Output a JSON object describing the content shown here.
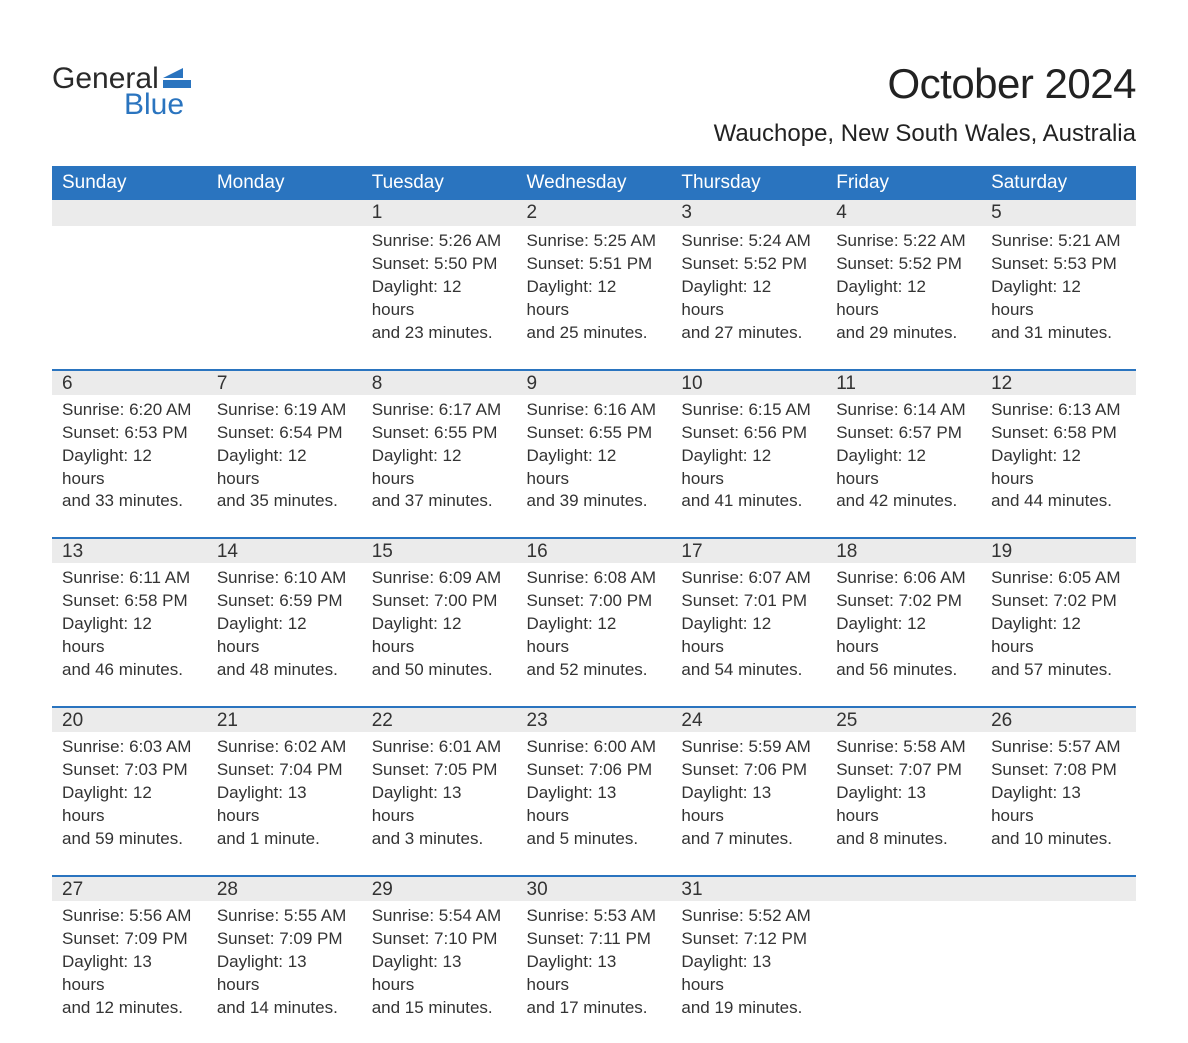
{
  "logo": {
    "word1": "General",
    "word2": "Blue",
    "accent_color": "#2a74bf"
  },
  "title": "October 2024",
  "location": "Wauchope, New South Wales, Australia",
  "colors": {
    "header_bg": "#2a74bf",
    "header_text": "#ffffff",
    "daynum_bg": "#ebebeb",
    "row_border": "#2a74bf",
    "body_text": "#333333",
    "page_bg": "#ffffff"
  },
  "fonts": {
    "title_pt": 42,
    "location_pt": 24,
    "dow_pt": 19,
    "daynum_pt": 19,
    "body_pt": 17
  },
  "days_of_week": [
    "Sunday",
    "Monday",
    "Tuesday",
    "Wednesday",
    "Thursday",
    "Friday",
    "Saturday"
  ],
  "weeks": [
    [
      null,
      null,
      {
        "n": "1",
        "sunrise": "Sunrise: 5:26 AM",
        "sunset": "Sunset: 5:50 PM",
        "day1": "Daylight: 12 hours",
        "day2": "and 23 minutes."
      },
      {
        "n": "2",
        "sunrise": "Sunrise: 5:25 AM",
        "sunset": "Sunset: 5:51 PM",
        "day1": "Daylight: 12 hours",
        "day2": "and 25 minutes."
      },
      {
        "n": "3",
        "sunrise": "Sunrise: 5:24 AM",
        "sunset": "Sunset: 5:52 PM",
        "day1": "Daylight: 12 hours",
        "day2": "and 27 minutes."
      },
      {
        "n": "4",
        "sunrise": "Sunrise: 5:22 AM",
        "sunset": "Sunset: 5:52 PM",
        "day1": "Daylight: 12 hours",
        "day2": "and 29 minutes."
      },
      {
        "n": "5",
        "sunrise": "Sunrise: 5:21 AM",
        "sunset": "Sunset: 5:53 PM",
        "day1": "Daylight: 12 hours",
        "day2": "and 31 minutes."
      }
    ],
    [
      {
        "n": "6",
        "sunrise": "Sunrise: 6:20 AM",
        "sunset": "Sunset: 6:53 PM",
        "day1": "Daylight: 12 hours",
        "day2": "and 33 minutes."
      },
      {
        "n": "7",
        "sunrise": "Sunrise: 6:19 AM",
        "sunset": "Sunset: 6:54 PM",
        "day1": "Daylight: 12 hours",
        "day2": "and 35 minutes."
      },
      {
        "n": "8",
        "sunrise": "Sunrise: 6:17 AM",
        "sunset": "Sunset: 6:55 PM",
        "day1": "Daylight: 12 hours",
        "day2": "and 37 minutes."
      },
      {
        "n": "9",
        "sunrise": "Sunrise: 6:16 AM",
        "sunset": "Sunset: 6:55 PM",
        "day1": "Daylight: 12 hours",
        "day2": "and 39 minutes."
      },
      {
        "n": "10",
        "sunrise": "Sunrise: 6:15 AM",
        "sunset": "Sunset: 6:56 PM",
        "day1": "Daylight: 12 hours",
        "day2": "and 41 minutes."
      },
      {
        "n": "11",
        "sunrise": "Sunrise: 6:14 AM",
        "sunset": "Sunset: 6:57 PM",
        "day1": "Daylight: 12 hours",
        "day2": "and 42 minutes."
      },
      {
        "n": "12",
        "sunrise": "Sunrise: 6:13 AM",
        "sunset": "Sunset: 6:58 PM",
        "day1": "Daylight: 12 hours",
        "day2": "and 44 minutes."
      }
    ],
    [
      {
        "n": "13",
        "sunrise": "Sunrise: 6:11 AM",
        "sunset": "Sunset: 6:58 PM",
        "day1": "Daylight: 12 hours",
        "day2": "and 46 minutes."
      },
      {
        "n": "14",
        "sunrise": "Sunrise: 6:10 AM",
        "sunset": "Sunset: 6:59 PM",
        "day1": "Daylight: 12 hours",
        "day2": "and 48 minutes."
      },
      {
        "n": "15",
        "sunrise": "Sunrise: 6:09 AM",
        "sunset": "Sunset: 7:00 PM",
        "day1": "Daylight: 12 hours",
        "day2": "and 50 minutes."
      },
      {
        "n": "16",
        "sunrise": "Sunrise: 6:08 AM",
        "sunset": "Sunset: 7:00 PM",
        "day1": "Daylight: 12 hours",
        "day2": "and 52 minutes."
      },
      {
        "n": "17",
        "sunrise": "Sunrise: 6:07 AM",
        "sunset": "Sunset: 7:01 PM",
        "day1": "Daylight: 12 hours",
        "day2": "and 54 minutes."
      },
      {
        "n": "18",
        "sunrise": "Sunrise: 6:06 AM",
        "sunset": "Sunset: 7:02 PM",
        "day1": "Daylight: 12 hours",
        "day2": "and 56 minutes."
      },
      {
        "n": "19",
        "sunrise": "Sunrise: 6:05 AM",
        "sunset": "Sunset: 7:02 PM",
        "day1": "Daylight: 12 hours",
        "day2": "and 57 minutes."
      }
    ],
    [
      {
        "n": "20",
        "sunrise": "Sunrise: 6:03 AM",
        "sunset": "Sunset: 7:03 PM",
        "day1": "Daylight: 12 hours",
        "day2": "and 59 minutes."
      },
      {
        "n": "21",
        "sunrise": "Sunrise: 6:02 AM",
        "sunset": "Sunset: 7:04 PM",
        "day1": "Daylight: 13 hours",
        "day2": "and 1 minute."
      },
      {
        "n": "22",
        "sunrise": "Sunrise: 6:01 AM",
        "sunset": "Sunset: 7:05 PM",
        "day1": "Daylight: 13 hours",
        "day2": "and 3 minutes."
      },
      {
        "n": "23",
        "sunrise": "Sunrise: 6:00 AM",
        "sunset": "Sunset: 7:06 PM",
        "day1": "Daylight: 13 hours",
        "day2": "and 5 minutes."
      },
      {
        "n": "24",
        "sunrise": "Sunrise: 5:59 AM",
        "sunset": "Sunset: 7:06 PM",
        "day1": "Daylight: 13 hours",
        "day2": "and 7 minutes."
      },
      {
        "n": "25",
        "sunrise": "Sunrise: 5:58 AM",
        "sunset": "Sunset: 7:07 PM",
        "day1": "Daylight: 13 hours",
        "day2": "and 8 minutes."
      },
      {
        "n": "26",
        "sunrise": "Sunrise: 5:57 AM",
        "sunset": "Sunset: 7:08 PM",
        "day1": "Daylight: 13 hours",
        "day2": "and 10 minutes."
      }
    ],
    [
      {
        "n": "27",
        "sunrise": "Sunrise: 5:56 AM",
        "sunset": "Sunset: 7:09 PM",
        "day1": "Daylight: 13 hours",
        "day2": "and 12 minutes."
      },
      {
        "n": "28",
        "sunrise": "Sunrise: 5:55 AM",
        "sunset": "Sunset: 7:09 PM",
        "day1": "Daylight: 13 hours",
        "day2": "and 14 minutes."
      },
      {
        "n": "29",
        "sunrise": "Sunrise: 5:54 AM",
        "sunset": "Sunset: 7:10 PM",
        "day1": "Daylight: 13 hours",
        "day2": "and 15 minutes."
      },
      {
        "n": "30",
        "sunrise": "Sunrise: 5:53 AM",
        "sunset": "Sunset: 7:11 PM",
        "day1": "Daylight: 13 hours",
        "day2": "and 17 minutes."
      },
      {
        "n": "31",
        "sunrise": "Sunrise: 5:52 AM",
        "sunset": "Sunset: 7:12 PM",
        "day1": "Daylight: 13 hours",
        "day2": "and 19 minutes."
      },
      null,
      null
    ]
  ]
}
